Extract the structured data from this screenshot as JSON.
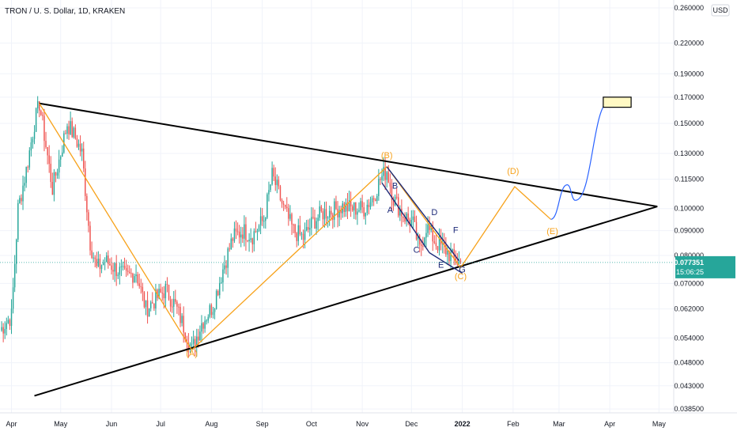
{
  "header": {
    "title": "TRON / U. S. Dollar, 1D, KRAKEN"
  },
  "price_axis": {
    "currency": "USD",
    "ticks": [
      "0.260000",
      "0.220000",
      "0.190000",
      "0.170000",
      "0.150000",
      "0.130000",
      "0.115000",
      "0.100000",
      "0.090000",
      "0.080000",
      "0.070000",
      "0.062000",
      "0.054000",
      "0.048000",
      "0.043000",
      "0.038500"
    ],
    "current_price": "0.077351",
    "countdown": "15:06:25"
  },
  "time_axis": {
    "ticks": [
      "Apr",
      "May",
      "Jun",
      "Jul",
      "Aug",
      "Sep",
      "Oct",
      "Nov",
      "Dec",
      "2022",
      "Feb",
      "Mar",
      "Apr",
      "May"
    ]
  },
  "colors": {
    "up": "#26a69a",
    "down": "#ef5350",
    "wave": "#f7a21b",
    "trend": "#000000",
    "subwave": "#1e2a78",
    "projection": "#2962ff",
    "target_fill": "#fff9c4"
  },
  "chart_data": {
    "type": "candlestick",
    "title": "TRON / U. S. Dollar, 1D, KRAKEN",
    "y_scale": "log",
    "ylim": [
      0.0378,
      0.27
    ],
    "xlim": [
      "2021-03-25",
      "2022-05-10"
    ],
    "price_series": [
      [
        "2021-03-25",
        0.056
      ],
      [
        "2021-04-01",
        0.06
      ],
      [
        "2021-04-05",
        0.1
      ],
      [
        "2021-04-10",
        0.12
      ],
      [
        "2021-04-15",
        0.15
      ],
      [
        "2021-04-18",
        0.165
      ],
      [
        "2021-04-22",
        0.135
      ],
      [
        "2021-04-26",
        0.11
      ],
      [
        "2021-05-01",
        0.13
      ],
      [
        "2021-05-05",
        0.15
      ],
      [
        "2021-05-10",
        0.14
      ],
      [
        "2021-05-14",
        0.13
      ],
      [
        "2021-05-19",
        0.085
      ],
      [
        "2021-05-23",
        0.075
      ],
      [
        "2021-05-28",
        0.078
      ],
      [
        "2021-06-04",
        0.075
      ],
      [
        "2021-06-10",
        0.072
      ],
      [
        "2021-06-16",
        0.074
      ],
      [
        "2021-06-22",
        0.062
      ],
      [
        "2021-06-28",
        0.065
      ],
      [
        "2021-07-04",
        0.068
      ],
      [
        "2021-07-10",
        0.063
      ],
      [
        "2021-07-16",
        0.056
      ],
      [
        "2021-07-20",
        0.051
      ],
      [
        "2021-07-26",
        0.058
      ],
      [
        "2021-08-02",
        0.063
      ],
      [
        "2021-08-08",
        0.075
      ],
      [
        "2021-08-14",
        0.087
      ],
      [
        "2021-08-20",
        0.09
      ],
      [
        "2021-08-26",
        0.088
      ],
      [
        "2021-09-02",
        0.095
      ],
      [
        "2021-09-07",
        0.117
      ],
      [
        "2021-09-10",
        0.11
      ],
      [
        "2021-09-14",
        0.1
      ],
      [
        "2021-09-20",
        0.09
      ],
      [
        "2021-09-26",
        0.087
      ],
      [
        "2021-10-02",
        0.094
      ],
      [
        "2021-10-08",
        0.098
      ],
      [
        "2021-10-14",
        0.099
      ],
      [
        "2021-10-20",
        0.101
      ],
      [
        "2021-10-26",
        0.1
      ],
      [
        "2021-11-02",
        0.1
      ],
      [
        "2021-11-08",
        0.106
      ],
      [
        "2021-11-12",
        0.115
      ],
      [
        "2021-11-16",
        0.12
      ],
      [
        "2021-11-20",
        0.105
      ],
      [
        "2021-11-26",
        0.097
      ],
      [
        "2021-12-02",
        0.093
      ],
      [
        "2021-12-06",
        0.082
      ],
      [
        "2021-12-10",
        0.092
      ],
      [
        "2021-12-16",
        0.085
      ],
      [
        "2021-12-22",
        0.082
      ],
      [
        "2021-12-26",
        0.079
      ],
      [
        "2021-12-31",
        0.077351
      ]
    ],
    "wave_labels": [
      {
        "label": "(A)",
        "date": "2021-07-20",
        "price": 0.0495
      },
      {
        "label": "(B)",
        "date": "2021-11-16",
        "price": 0.127
      },
      {
        "label": "(C)",
        "date": "2021-12-31",
        "price": 0.0715
      },
      {
        "label": "(D)",
        "date": "2022-02-01",
        "price": 0.118
      },
      {
        "label": "(E)",
        "date": "2022-02-25",
        "price": 0.0885
      },
      {
        "label": "A",
        "date": "2021-11-18",
        "price": 0.098
      },
      {
        "label": "B",
        "date": "2021-11-21",
        "price": 0.11
      },
      {
        "label": "C",
        "date": "2021-12-04",
        "price": 0.081
      },
      {
        "label": "D",
        "date": "2021-12-15",
        "price": 0.097
      },
      {
        "label": "E",
        "date": "2021-12-19",
        "price": 0.0755
      },
      {
        "label": "F",
        "date": "2021-12-28",
        "price": 0.089
      },
      {
        "label": "G",
        "date": "2022-01-01",
        "price": 0.0738
      }
    ],
    "wave_path": [
      [
        "2021-04-18",
        0.165
      ],
      [
        "2021-07-20",
        0.051
      ],
      [
        "2021-11-16",
        0.122
      ],
      [
        "2021-12-31",
        0.0755
      ],
      [
        "2022-02-02",
        0.111
      ],
      [
        "2022-02-24",
        0.095
      ]
    ],
    "subwave_lines": [
      [
        [
          "2021-11-13",
          0.113
        ],
        [
          "2021-12-12",
          0.081
        ],
        [
          "2022-01-01",
          0.0735
        ]
      ],
      [
        [
          "2021-11-16",
          0.122
        ],
        [
          "2021-12-30",
          0.078
        ]
      ]
    ],
    "trendlines": [
      [
        [
          "2021-04-18",
          0.165
        ],
        [
          "2022-04-30",
          0.101
        ]
      ],
      [
        [
          "2021-04-15",
          0.041
        ],
        [
          "2022-04-30",
          0.101
        ]
      ]
    ],
    "projection_path": [
      [
        "2022-02-24",
        0.095
      ],
      [
        "2022-03-06",
        0.112
      ],
      [
        "2022-03-11",
        0.104
      ],
      [
        "2022-04-01",
        0.167
      ]
    ],
    "target_box": {
      "date_start": "2022-03-28",
      "date_end": "2022-04-14",
      "price_low": 0.162,
      "price_high": 0.17
    }
  }
}
